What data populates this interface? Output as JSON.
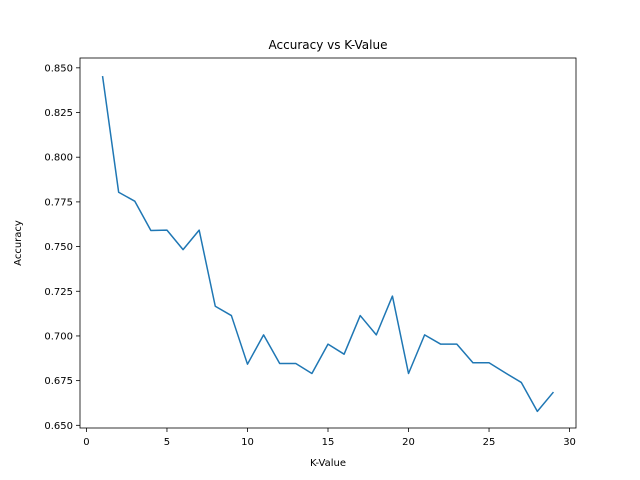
{
  "chart_data": {
    "type": "line",
    "title": "Accuracy vs K-Value",
    "xlabel": "K-Value",
    "ylabel": "Accuracy",
    "xlim": [
      -0.4,
      30.4
    ],
    "ylim": [
      0.6485,
      0.8555
    ],
    "xticks": [
      0,
      5,
      10,
      15,
      20,
      25,
      30
    ],
    "yticks": [
      0.65,
      0.675,
      0.7,
      0.725,
      0.75,
      0.775,
      0.8,
      0.825,
      0.85
    ],
    "grid": false,
    "series": [
      {
        "color": "#1f77b4",
        "x": [
          1,
          2,
          3,
          4,
          5,
          6,
          7,
          8,
          9,
          10,
          11,
          12,
          13,
          14,
          15,
          16,
          17,
          18,
          19,
          20,
          21,
          22,
          23,
          24,
          25,
          26,
          27,
          28,
          29
        ],
        "y": [
          0.8454,
          0.7804,
          0.7754,
          0.759,
          0.7592,
          0.7483,
          0.7592,
          0.7166,
          0.7114,
          0.6842,
          0.7006,
          0.6846,
          0.6846,
          0.679,
          0.6954,
          0.6898,
          0.7114,
          0.7006,
          0.7223,
          0.679,
          0.7006,
          0.6954,
          0.6954,
          0.685,
          0.685,
          0.6794,
          0.674,
          0.6578,
          0.6686
        ]
      }
    ]
  }
}
